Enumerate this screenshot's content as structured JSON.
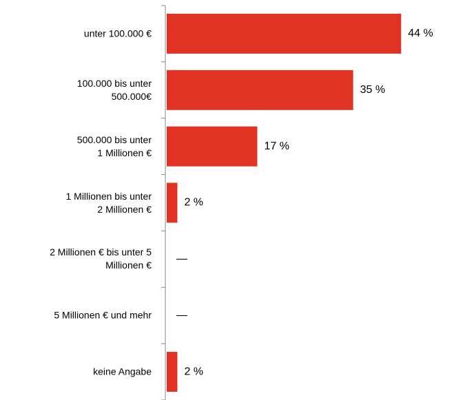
{
  "chart_data": {
    "type": "bar",
    "categories": [
      "unter 100.000 €",
      "100.000 bis unter\n500.000€",
      "500.000 bis unter\n1 Millionen €",
      "1 Millionen bis unter\n2 Millionen €",
      "2 Millionen € bis unter 5\nMillionen €",
      "5 Millionen € und mehr",
      "keine Angabe"
    ],
    "values": [
      44,
      35,
      17,
      2,
      null,
      null,
      2
    ],
    "value_labels": [
      "44 %",
      "35 %",
      "17 %",
      "2 %",
      "—",
      "—",
      "2 %"
    ],
    "color": "#e03323",
    "xlim": [
      0,
      45
    ]
  }
}
